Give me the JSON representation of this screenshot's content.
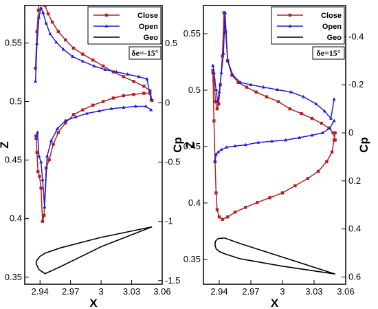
{
  "chart_data": [
    {
      "type": "line",
      "panel": "left",
      "xlabel": "X",
      "ylabel": "Z",
      "y2label": "Cp",
      "xticks": [
        "2.94",
        "2.97",
        "3",
        "3.03",
        "3.06"
      ],
      "xtick_values": [
        2.94,
        2.97,
        3.0,
        3.03,
        3.06
      ],
      "xlim": [
        2.925,
        3.06
      ],
      "yticks": [
        "0.35",
        "0.4",
        "0.45",
        "0.5",
        "0.55"
      ],
      "ytick_values": [
        0.35,
        0.4,
        0.45,
        0.5,
        0.55
      ],
      "ylim": [
        0.344,
        0.582
      ],
      "y2ticks": [
        "0.5",
        "0",
        "-0.5",
        "-1",
        "-1.5"
      ],
      "y2tick_values": [
        0.5,
        0,
        -0.5,
        -1,
        -1.5
      ],
      "y2lim_top_bottom": [
        0.82,
        -1.53
      ],
      "annotation": "δe=-15°",
      "legend_position": "top-right",
      "series": [
        {
          "name": "Close",
          "color": "#b22222",
          "marker": "square",
          "axis": "cp",
          "x": [
            2.9355,
            2.937,
            2.9385,
            2.94,
            2.9415,
            2.943,
            2.945,
            2.948,
            2.952,
            2.958,
            2.965,
            2.973,
            2.982,
            2.992,
            3.002,
            3.012,
            3.022,
            3.032,
            3.042,
            3.048,
            3.05
          ],
          "y": [
            0.29,
            0.6,
            0.78,
            0.92,
            0.98,
            0.91,
            0.82,
            0.75,
            0.68,
            0.6,
            0.53,
            0.46,
            0.41,
            0.36,
            0.31,
            0.26,
            0.22,
            0.18,
            0.14,
            0.1,
            0.02
          ],
          "x2": [
            2.936,
            2.937,
            2.938,
            2.9395,
            2.941,
            2.9425,
            2.944,
            2.946,
            2.949,
            2.953,
            2.958,
            2.965,
            2.973,
            2.982,
            2.992,
            3.002,
            3.012,
            3.022,
            3.032,
            3.042,
            3.048
          ],
          "y2": [
            -0.28,
            -0.42,
            -0.58,
            -0.62,
            -0.72,
            -1.0,
            -0.95,
            -0.55,
            -0.48,
            -0.35,
            -0.25,
            -0.17,
            -0.1,
            -0.06,
            -0.02,
            0.01,
            0.04,
            0.06,
            0.07,
            0.08,
            0.08
          ]
        },
        {
          "name": "Open",
          "color": "#1e1ed2",
          "marker": "triangle",
          "axis": "cp",
          "x": [
            2.9355,
            2.937,
            2.939,
            2.941,
            2.943,
            2.946,
            2.95,
            2.956,
            2.963,
            2.972,
            2.982,
            2.993,
            3.004,
            3.015,
            3.026,
            3.037,
            3.045,
            3.049
          ],
          "y": [
            0.18,
            0.5,
            0.72,
            0.8,
            0.76,
            0.67,
            0.58,
            0.51,
            0.45,
            0.39,
            0.35,
            0.31,
            0.28,
            0.26,
            0.24,
            0.22,
            0.2,
            0.03
          ],
          "x2": [
            2.936,
            2.9375,
            2.939,
            2.941,
            2.9425,
            2.9445,
            2.947,
            2.951,
            2.957,
            2.965,
            2.975,
            2.986,
            2.998,
            3.01,
            3.022,
            3.034,
            3.044,
            3.049
          ],
          "y2": [
            -0.3,
            -0.25,
            -0.45,
            -0.5,
            -0.65,
            -0.88,
            -0.45,
            -0.32,
            -0.22,
            -0.15,
            -0.12,
            -0.09,
            -0.07,
            -0.05,
            -0.04,
            -0.03,
            -0.03,
            -0.06
          ]
        },
        {
          "name": "Geo",
          "color": "#000000",
          "marker": "none",
          "axis": "z",
          "x": [
            3.05,
            3.0,
            2.96,
            2.945,
            2.94,
            2.9365,
            2.9362,
            2.939,
            2.945,
            2.96,
            3.0,
            3.05
          ],
          "y": [
            0.393,
            0.384,
            0.375,
            0.3705,
            0.3678,
            0.364,
            0.3615,
            0.3565,
            0.353,
            0.359,
            0.376,
            0.393
          ]
        }
      ]
    },
    {
      "type": "line",
      "panel": "right",
      "xlabel": "X",
      "ylabel": "Z",
      "y2label": "Cp",
      "xticks": [
        "2.94",
        "2.97",
        "3",
        "3.03",
        "3.06"
      ],
      "xtick_values": [
        2.94,
        2.97,
        3.0,
        3.03,
        3.06
      ],
      "xlim": [
        2.925,
        3.06
      ],
      "yticks": [
        "0.35",
        "0.4",
        "0.45",
        "0.5",
        "0.55"
      ],
      "ytick_values": [
        0.35,
        0.4,
        0.45,
        0.5,
        0.55
      ],
      "ylim": [
        0.328,
        0.575
      ],
      "y2ticks": [
        "-0.4",
        "-0.2",
        "0",
        "0.2",
        "0.4",
        "0.6"
      ],
      "y2tick_values": [
        -0.4,
        -0.2,
        0,
        0.2,
        0.4,
        0.6
      ],
      "y2lim_top_bottom": [
        -0.53,
        0.63
      ],
      "annotation": "δe=15°",
      "legend_position": "top-right",
      "series": [
        {
          "name": "Close",
          "color": "#b22222",
          "marker": "square",
          "axis": "cp",
          "x": [
            2.934,
            2.935,
            2.9365,
            2.938,
            2.9395,
            2.941,
            2.943,
            2.9445,
            2.946,
            2.948,
            2.952,
            2.958,
            2.966,
            2.975,
            2.985,
            2.996,
            3.007,
            3.018,
            3.028,
            3.037,
            3.044,
            3.048,
            3.05
          ],
          "y": [
            -0.26,
            -0.22,
            -0.13,
            -0.1,
            -0.12,
            -0.2,
            -0.32,
            -0.5,
            -0.42,
            -0.3,
            -0.24,
            -0.21,
            -0.19,
            -0.17,
            -0.15,
            -0.13,
            -0.1,
            -0.08,
            -0.06,
            -0.04,
            -0.02,
            0.0,
            0.03
          ],
          "x2": [
            2.934,
            2.935,
            2.936,
            2.937,
            2.938,
            2.94,
            2.943,
            2.948,
            2.955,
            2.965,
            2.976,
            2.988,
            3.0,
            3.012,
            3.024,
            3.034,
            3.042,
            3.047,
            3.049,
            3.05
          ],
          "y2": [
            -0.25,
            -0.05,
            0.12,
            0.25,
            0.32,
            0.35,
            0.36,
            0.35,
            0.33,
            0.31,
            0.29,
            0.27,
            0.25,
            0.22,
            0.19,
            0.16,
            0.12,
            0.08,
            0.03,
            0.0
          ]
        },
        {
          "name": "Open",
          "color": "#1e1ed2",
          "marker": "triangle",
          "axis": "cp",
          "x": [
            2.934,
            2.935,
            2.937,
            2.9385,
            2.94,
            2.942,
            2.944,
            2.9455,
            2.948,
            2.953,
            2.96,
            2.97,
            2.982,
            2.995,
            3.008,
            3.02,
            3.032,
            3.04,
            3.046,
            3.049
          ],
          "y": [
            -0.28,
            -0.25,
            -0.18,
            -0.13,
            -0.17,
            -0.25,
            -0.33,
            -0.5,
            -0.3,
            -0.24,
            -0.21,
            -0.2,
            -0.19,
            -0.18,
            -0.17,
            -0.15,
            -0.12,
            -0.09,
            -0.06,
            -0.14
          ],
          "x2": [
            2.936,
            2.937,
            2.939,
            2.942,
            2.947,
            2.955,
            2.965,
            2.977,
            2.99,
            3.003,
            3.016,
            3.028,
            3.038,
            3.045,
            3.049
          ],
          "y2": [
            0.12,
            0.09,
            0.08,
            0.07,
            0.06,
            0.055,
            0.05,
            0.04,
            0.035,
            0.03,
            0.02,
            0.01,
            0.0,
            -0.02,
            -0.05
          ]
        },
        {
          "name": "Geo",
          "color": "#000000",
          "marker": "none",
          "axis": "z",
          "x": [
            3.05,
            3.0,
            2.96,
            2.945,
            2.939,
            2.9363,
            2.936,
            2.937,
            2.94,
            2.945,
            2.96,
            3.0,
            3.05
          ],
          "y": [
            0.337,
            0.352,
            0.364,
            0.369,
            0.3685,
            0.366,
            0.3625,
            0.3595,
            0.357,
            0.355,
            0.3505,
            0.344,
            0.337
          ]
        }
      ]
    }
  ]
}
